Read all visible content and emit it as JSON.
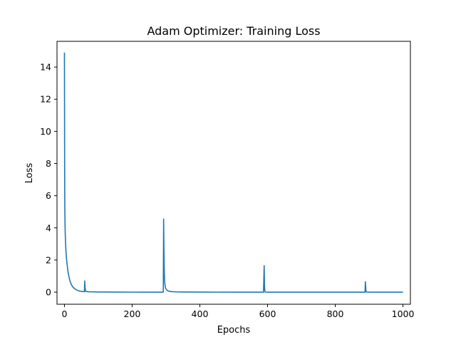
{
  "chart_data": {
    "type": "line",
    "title": "Adam Optimizer: Training Loss",
    "xlabel": "Epochs",
    "ylabel": "Loss",
    "xlim": [
      -22,
      1022
    ],
    "ylim": [
      -0.75,
      15.6
    ],
    "xticks": [
      0,
      200,
      400,
      600,
      800,
      1000
    ],
    "yticks": [
      0,
      2,
      4,
      6,
      8,
      10,
      12,
      14
    ],
    "grid": false,
    "line_color": "#1f77b4",
    "series": [
      {
        "x": [
          0,
          0.5,
          1,
          1.5,
          2,
          3,
          4,
          5,
          6,
          8,
          10,
          12,
          15,
          18,
          21,
          25,
          30,
          35,
          40,
          45,
          50,
          55,
          59,
          60,
          61,
          62,
          63,
          65,
          70,
          80,
          90,
          100,
          120,
          150,
          200,
          250,
          290,
          292,
          293,
          294,
          295,
          296,
          297,
          298,
          300,
          303,
          306,
          310,
          315,
          320,
          330,
          345,
          360,
          400,
          450,
          500,
          550,
          588,
          590,
          591,
          592,
          593,
          594,
          596,
          600,
          650,
          700,
          750,
          800,
          850,
          888,
          889,
          890,
          891,
          892,
          893,
          895,
          900,
          950,
          1000
        ],
        "y": [
          14.9,
          8.5,
          5.5,
          4.6,
          3.9,
          3.2,
          2.7,
          2.4,
          2.1,
          1.7,
          1.35,
          1.1,
          0.8,
          0.6,
          0.45,
          0.32,
          0.22,
          0.15,
          0.1,
          0.07,
          0.05,
          0.04,
          0.03,
          0.7,
          0.3,
          0.1,
          0.05,
          0.04,
          0.03,
          0.02,
          0.015,
          0.01,
          0.01,
          0.005,
          0.003,
          0.002,
          0.002,
          0.01,
          4.55,
          2.5,
          1.2,
          0.7,
          0.45,
          0.3,
          0.2,
          0.12,
          0.08,
          0.05,
          0.04,
          0.03,
          0.02,
          0.01,
          0.01,
          0.005,
          0.003,
          0.002,
          0.002,
          0.002,
          1.65,
          0.4,
          0.05,
          0.01,
          0.005,
          0.003,
          0.002,
          0.002,
          0.002,
          0.002,
          0.002,
          0.002,
          0.002,
          0.65,
          0.3,
          0.05,
          0.01,
          0.005,
          0.003,
          0.002,
          0.002,
          0.002
        ]
      }
    ]
  }
}
